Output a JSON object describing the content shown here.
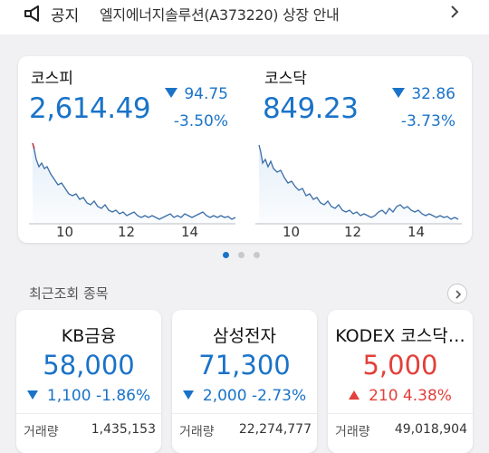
{
  "notice": {
    "label": "공지",
    "text": "엘지에너지솔루션(A373220) 상장 안내",
    "icon": "megaphone-icon"
  },
  "indices": [
    {
      "name": "코스피",
      "value": "2,614.49",
      "change": "94.75",
      "rate": "-3.50%",
      "direction": "down",
      "ticks": [
        "10",
        "12",
        "14"
      ]
    },
    {
      "name": "코스닥",
      "value": "849.23",
      "change": "32.86",
      "rate": "-3.73%",
      "direction": "down",
      "ticks": [
        "10",
        "12",
        "14"
      ]
    }
  ],
  "pager": {
    "count": 3,
    "active": 0
  },
  "recent": {
    "title": "최근조회 종목",
    "volume_label": "거래량",
    "stocks": [
      {
        "name": "KB금융",
        "price": "58,000",
        "change": "1,100",
        "rate": "-1.86%",
        "direction": "down",
        "volume": "1,435,153"
      },
      {
        "name": "삼성전자",
        "price": "71,300",
        "change": "2,000",
        "rate": "-2.73%",
        "direction": "down",
        "volume": "22,274,777"
      },
      {
        "name": "KODEX 코스닥…",
        "price": "5,000",
        "change": "210",
        "rate": "4.38%",
        "direction": "up",
        "volume": "49,018,904"
      }
    ]
  },
  "colors": {
    "down": "#1a73c8",
    "up": "#e2403a",
    "card": "#ffffff",
    "background": "#f1f1f3"
  }
}
